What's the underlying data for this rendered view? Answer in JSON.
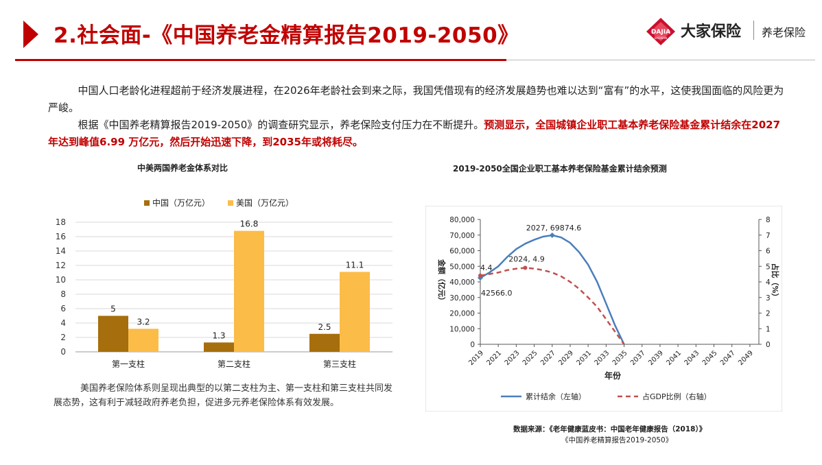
{
  "header": {
    "title": "2.社会面-《中国养老金精算报告2019-2050》",
    "logo_name": "大家保险",
    "logo_sub": "养老保险",
    "logo_mark_text": "DAJIA",
    "logo_mark_subtext": "BAOXIAN"
  },
  "body": {
    "para1": "中国人口老龄化进程超前于经济发展进程，在2026年老龄社会到来之际，我国凭借现有的经济发展趋势也难以达到“富有”的水平，这使我国面临的风险更为严峻。",
    "para2_plain": "根据《中国养老精算报告2019-2050》的调查研究显示，养老保险支付压力在不断提升。",
    "para2_highlight": "预测显示，全国城镇企业职工基本养老保险基金累计结余在2027 年达到峰值6.99 万亿元，然后开始迅速下降，到2035年或将耗尽。"
  },
  "chart_data": [
    {
      "type": "bar",
      "title": "中美两国养老金体系对比",
      "categories": [
        "第一支柱",
        "第二支柱",
        "第三支柱"
      ],
      "series": [
        {
          "name": "中国（万亿元）",
          "values": [
            5,
            1.3,
            2.5
          ],
          "color": "#a66e0c"
        },
        {
          "name": "美国（万亿元）",
          "values": [
            3.2,
            16.8,
            11.1
          ],
          "color": "#fbbc48"
        }
      ],
      "data_labels": [
        [
          "5",
          "1.3",
          "2.5"
        ],
        [
          "3.2",
          "16.8",
          "11.1"
        ]
      ],
      "ylim": [
        0,
        18
      ],
      "yticks": [
        0,
        2,
        4,
        6,
        8,
        10,
        12,
        14,
        16,
        18
      ],
      "ytick_labels": [
        "0",
        "2",
        "4",
        "6",
        "8",
        "10",
        "12",
        "14",
        "16",
        "18"
      ],
      "grid": true,
      "legend": "top",
      "caption": "美国养老保险体系则呈现出典型的以第二支柱为主、第一支柱和第三支柱共同发展态势，这有利于减轻政府养老负担，促进多元养老保险体系有效发展。"
    },
    {
      "type": "line",
      "title": "2019-2050全国企业职工基本养老保险基金累计结余预测",
      "xlabel": "年份",
      "ylabel_left": "金额（亿元）",
      "ylabel_right": "占比（%）",
      "xlim": [
        2019,
        2050
      ],
      "xtick_labels": [
        "2019",
        "2021",
        "2023",
        "2025",
        "2027",
        "2029",
        "2031",
        "2033",
        "2035",
        "2037",
        "2039",
        "2041",
        "2043",
        "2045",
        "2047",
        "2049"
      ],
      "ylim_left": [
        0,
        80000
      ],
      "ytick_labels_left": [
        "0",
        "10,000",
        "20,000",
        "30,000",
        "40,000",
        "50,000",
        "60,000",
        "70,000",
        "80,000"
      ],
      "ylim_right": [
        0,
        8
      ],
      "ytick_labels_right": [
        "0",
        "1",
        "2",
        "3",
        "4",
        "5",
        "6",
        "7",
        "8"
      ],
      "grid": false,
      "legend": "bottom",
      "series": [
        {
          "name": "累计结余（左轴）",
          "axis": "left",
          "color": "#4a7ebb",
          "style": "solid",
          "x": [
            2019,
            2020,
            2021,
            2022,
            2023,
            2024,
            2025,
            2026,
            2027,
            2028,
            2029,
            2030,
            2031,
            2032,
            2033,
            2034,
            2035
          ],
          "y": [
            42566,
            46000,
            50000,
            56000,
            61000,
            64500,
            67000,
            69000,
            69874.6,
            68500,
            65000,
            59000,
            51000,
            40000,
            26000,
            12000,
            0
          ]
        },
        {
          "name": "占GDP比例（右轴）",
          "axis": "right",
          "color": "#c0504d",
          "style": "dashed",
          "x": [
            2019,
            2020,
            2021,
            2022,
            2023,
            2024,
            2025,
            2026,
            2027,
            2028,
            2029,
            2030,
            2031,
            2032,
            2033,
            2034,
            2035
          ],
          "y": [
            4.4,
            4.5,
            4.6,
            4.75,
            4.85,
            4.9,
            4.85,
            4.75,
            4.6,
            4.35,
            4.0,
            3.55,
            3.0,
            2.4,
            1.6,
            0.8,
            0
          ]
        }
      ],
      "annotations": [
        {
          "text": "2027, 69874.6",
          "x": 2027,
          "y": 69874.6,
          "axis": "left"
        },
        {
          "text": "42566.0",
          "x": 2019,
          "y": 42566,
          "axis": "left"
        },
        {
          "text": "2024, 4.9",
          "x": 2024,
          "y": 4.9,
          "axis": "right"
        },
        {
          "text": "4.4",
          "x": 2019,
          "y": 4.4,
          "axis": "right"
        }
      ],
      "source_line1": "数据来源：《老年健康蓝皮书：中国老年健康报告（2018）》",
      "source_line2": "《中国养老精算报告2019-2050》"
    }
  ]
}
